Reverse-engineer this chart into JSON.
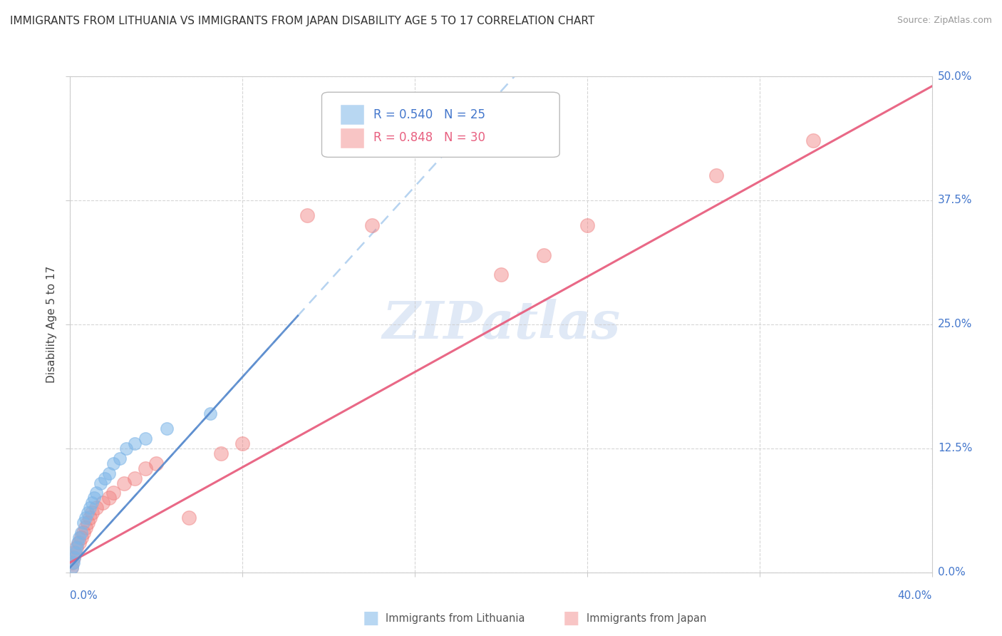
{
  "title": "IMMIGRANTS FROM LITHUANIA VS IMMIGRANTS FROM JAPAN DISABILITY AGE 5 TO 17 CORRELATION CHART",
  "source": "Source: ZipAtlas.com",
  "ylabel_label": "Disability Age 5 to 17",
  "R_lithuania": 0.54,
  "N_lithuania": 25,
  "R_japan": 0.848,
  "N_japan": 30,
  "color_lithuania": "#7EB6E8",
  "color_japan": "#F08080",
  "color_trend_lithuania": "#AACCEE",
  "color_trend_japan": "#E86080",
  "background_color": "#FFFFFF",
  "xlim": [
    0,
    40
  ],
  "ylim": [
    0,
    50
  ],
  "xtick_positions": [
    0,
    8,
    16,
    24,
    32,
    40
  ],
  "ytick_positions": [
    0,
    12.5,
    25,
    37.5,
    50
  ],
  "lithuania_x": [
    0.1,
    0.15,
    0.2,
    0.25,
    0.3,
    0.35,
    0.4,
    0.5,
    0.6,
    0.7,
    0.8,
    0.9,
    1.0,
    1.1,
    1.2,
    1.4,
    1.6,
    1.8,
    2.0,
    2.3,
    2.6,
    3.0,
    3.5,
    4.5,
    6.5
  ],
  "lithuania_y": [
    0.5,
    1.0,
    1.5,
    2.0,
    2.5,
    3.0,
    3.5,
    4.0,
    5.0,
    5.5,
    6.0,
    6.5,
    7.0,
    7.5,
    8.0,
    9.0,
    9.5,
    10.0,
    11.0,
    11.5,
    12.5,
    13.0,
    13.5,
    14.5,
    16.0
  ],
  "japan_x": [
    0.05,
    0.1,
    0.15,
    0.2,
    0.3,
    0.4,
    0.5,
    0.6,
    0.7,
    0.8,
    0.9,
    1.0,
    1.2,
    1.5,
    1.8,
    2.0,
    2.5,
    3.0,
    3.5,
    4.0,
    5.5,
    7.0,
    8.0,
    11.0,
    14.0,
    20.0,
    22.0,
    24.0,
    30.0,
    34.5
  ],
  "japan_y": [
    0.5,
    1.0,
    1.5,
    2.0,
    2.5,
    3.0,
    3.5,
    4.0,
    4.5,
    5.0,
    5.5,
    6.0,
    6.5,
    7.0,
    7.5,
    8.0,
    9.0,
    9.5,
    10.5,
    11.0,
    5.5,
    12.0,
    13.0,
    36.0,
    35.0,
    30.0,
    32.0,
    35.0,
    40.0,
    43.5
  ],
  "trend_lit_slope": 2.4,
  "trend_lit_intercept": 0.5,
  "trend_jap_slope": 1.2,
  "trend_jap_intercept": 1.0,
  "legend_lit_text": "R = 0.540   N = 25",
  "legend_jap_text": "R = 0.848   N = 30",
  "bottom_legend_lit": "Immigrants from Lithuania",
  "bottom_legend_jap": "Immigrants from Japan",
  "watermark_text": "ZIPatlas",
  "watermark_color": "#C8D8F0"
}
